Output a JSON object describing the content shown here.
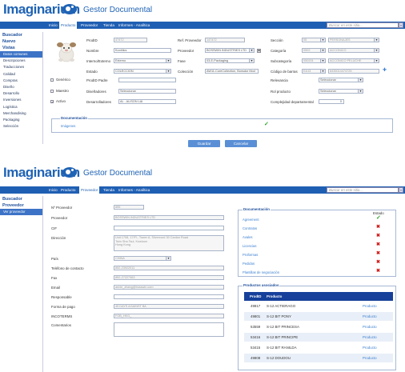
{
  "app": {
    "brand": "Imaginarium",
    "subtitle": "Gestor Documental",
    "search_placeholder": "Buscar en este sitio...",
    "search_button": "»"
  },
  "colors": {
    "brand_blue": "#1f63b5",
    "nav_blue": "#1f5fb3",
    "ok_green": "#28a428",
    "error_red": "#d01818"
  },
  "screen1": {
    "nav": [
      "Inicio",
      "Producto",
      "Proveedor",
      "Tienda",
      "Informes - Analítica"
    ],
    "nav_active": "Producto",
    "sidebar": {
      "headers": [
        "Buscador",
        "Nuevo",
        "Vistas"
      ],
      "items": [
        "Datos comunes",
        "Descripciones",
        "Traducciones",
        "Calidad",
        "Compras",
        "Diseño",
        "Desarrollo",
        "Inversiones",
        "Logística",
        "Merchandising",
        "Packaging",
        "Selección"
      ],
      "selected": "Datos comunes"
    },
    "form": {
      "prodid_label": "ProdID",
      "prodid": "47472",
      "nombre_label": "Nombre",
      "nombre": "Koohlics",
      "interno_label": "Interno/Externo",
      "interno": "Externo",
      "estado_label": "Estado",
      "estado": "COLECCION",
      "prodid_padre_label": "ProdID Padre",
      "generico_label": "Genérico",
      "maestro_label": "Maestro",
      "activo_label": "Activo",
      "disenadores_label": "Diseñadores",
      "disenadores": "Seleccionar",
      "desarrolladores_label": "Desarrolladores",
      "desarrolladores": "AL - ALISON LAI",
      "ref_proveedor_label": "Ref. Proveedor",
      "ref_proveedor": "147472",
      "proveedor_label": "Proveedor",
      "proveedor": "BOSSWIN INDUSTRIES LTD",
      "fase_label": "Fase",
      "fase": "03-E-Packaging",
      "coleccion_label": "Colección",
      "coleccion": "AW11-CoreCollection, Bonsdor Mod",
      "seccion_label": "Sección",
      "seccion_code": "05",
      "seccion": "PERSONAJES",
      "categoria_label": "Categoría",
      "categoria_code": "0502",
      "categoria": "ACCONICO",
      "subcategoria_label": "Subcategoría",
      "subcategoria_code": "050201",
      "subcategoria": "ACCONICO PELUCHE",
      "codigo_barras_label": "Código de barras",
      "codigo_barras_type": "EA13",
      "codigo_barras": "8435014474725",
      "relevancia_label": "Relevancia",
      "relevancia": "Seleccionar",
      "rol_label": "Rol producto",
      "rol": "Seleccionar",
      "complejidad_label": "Complejidad departamental",
      "complejidad": "0"
    },
    "documentacion": {
      "title": "Documentación",
      "items": [
        "Imágenes"
      ]
    },
    "buttons": {
      "save": "Guardar",
      "cancel": "Cancelar"
    }
  },
  "screen2": {
    "nav": [
      "Inicio",
      "Producto",
      "Proveedor",
      "Tienda",
      "Informes - Analítica"
    ],
    "nav_active": "Proveedor",
    "sidebar": {
      "headers": [
        "Buscador",
        "Proveedor"
      ],
      "items": [
        "Ver proveedor"
      ],
      "selected": "Ver proveedor"
    },
    "form": {
      "nproveedor_label": "Nº Proveedor",
      "nproveedor": "855",
      "proveedor_label": "Proveedor",
      "proveedor": "BOSSWIN INDUSTRIES LTD",
      "cif_label": "CIF",
      "direccion_label": "Dirección",
      "direccion_1": "Unit 1708, 17/Fl., Tower A, Silvercord 30 Canton Road",
      "direccion_2": "Tsim Sha Tsui, Kowloon",
      "direccion_3": "Hong Kong",
      "pais_label": "País",
      "pais": "CHINA",
      "telefono_label": "Teléfono de contacto",
      "telefono": "852-23922011",
      "fax_label": "Fax",
      "fax": "852-27227363",
      "email_label": "Email",
      "email": "annie_zhang@bosswin.com",
      "responsable_label": "Responsable",
      "forma_pago_label": "Forma de pago",
      "forma_pago": "45 DAYS AGAINST B/L",
      "incoterms_label": "INCOTERMS",
      "incoterms": "FOB_HKG_",
      "comentarios_label": "Comentarios"
    },
    "documentacion": {
      "title": "Documentación",
      "estado_label": "Estado",
      "items": [
        {
          "label": "Agreement",
          "ok": true
        },
        {
          "label": "Contratos",
          "ok": false
        },
        {
          "label": "Avales",
          "ok": false
        },
        {
          "label": "Licencias",
          "ok": false
        },
        {
          "label": "Proformas",
          "ok": false
        },
        {
          "label": "Pedidos",
          "ok": false
        },
        {
          "label": "Plantillas de negociación",
          "ok": false
        }
      ]
    },
    "productos": {
      "title": "Productos asociados",
      "columns": [
        "ProdID",
        "Producto",
        ""
      ],
      "rows": [
        {
          "id": "49817",
          "name": "S-12 ACTIERAGO",
          "link": "Producto"
        },
        {
          "id": "49801",
          "name": "S-12 BIT PONY",
          "link": "Producto"
        },
        {
          "id": "53559",
          "name": "S-12 BIT PRINCESA",
          "link": "Producto"
        },
        {
          "id": "53416",
          "name": "S-12 BIT PRINCIPE",
          "link": "Producto"
        },
        {
          "id": "53415",
          "name": "S-12 BIT RANILDA",
          "link": "Producto"
        },
        {
          "id": "49808",
          "name": "S-12 DOUDOU",
          "link": "Producto"
        }
      ]
    }
  }
}
